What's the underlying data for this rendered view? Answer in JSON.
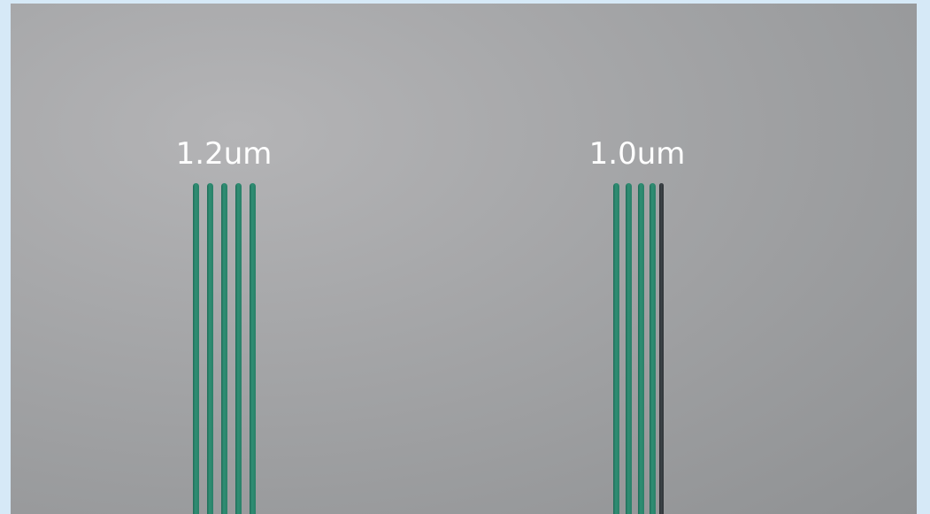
{
  "labels": [
    "1.2um",
    "1.0um"
  ]
}
